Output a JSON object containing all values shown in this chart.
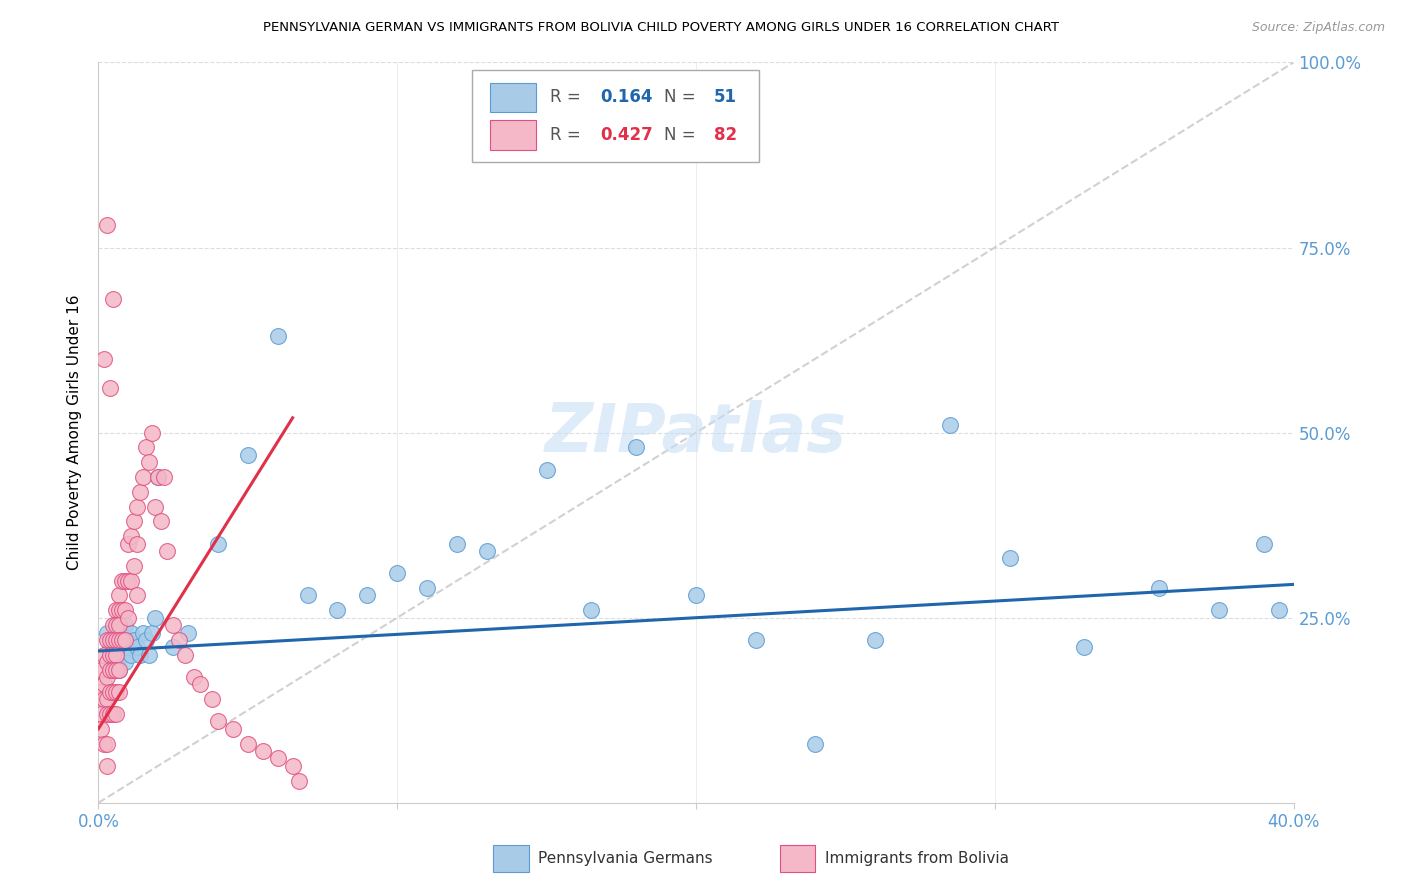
{
  "title": "PENNSYLVANIA GERMAN VS IMMIGRANTS FROM BOLIVIA CHILD POVERTY AMONG GIRLS UNDER 16 CORRELATION CHART",
  "source": "Source: ZipAtlas.com",
  "ylabel": "Child Poverty Among Girls Under 16",
  "xlim": [
    0.0,
    0.4
  ],
  "ylim": [
    0.0,
    1.0
  ],
  "color_blue": "#a8cce8",
  "color_blue_edge": "#5b9bd5",
  "color_pink": "#f4b8c8",
  "color_pink_edge": "#e05080",
  "color_trend_blue": "#2166ac",
  "color_trend_pink": "#e0304a",
  "color_diagonal": "#cccccc",
  "color_grid": "#dddddd",
  "color_right_axis": "#5b9bd5",
  "color_watermark": "#c8dff5",
  "watermark": "ZIPatlas",
  "r_blue": "0.164",
  "n_blue": "51",
  "r_pink": "0.427",
  "n_pink": "82",
  "blue_points_x": [
    0.003,
    0.004,
    0.005,
    0.005,
    0.006,
    0.006,
    0.007,
    0.007,
    0.008,
    0.008,
    0.009,
    0.009,
    0.01,
    0.01,
    0.011,
    0.011,
    0.012,
    0.013,
    0.014,
    0.015,
    0.016,
    0.017,
    0.018,
    0.019,
    0.02,
    0.025,
    0.03,
    0.04,
    0.05,
    0.06,
    0.07,
    0.08,
    0.09,
    0.1,
    0.11,
    0.12,
    0.13,
    0.15,
    0.165,
    0.18,
    0.2,
    0.22,
    0.24,
    0.26,
    0.285,
    0.305,
    0.33,
    0.355,
    0.375,
    0.39,
    0.395
  ],
  "blue_points_y": [
    0.23,
    0.21,
    0.22,
    0.19,
    0.24,
    0.2,
    0.23,
    0.18,
    0.22,
    0.2,
    0.24,
    0.19,
    0.22,
    0.21,
    0.23,
    0.2,
    0.22,
    0.21,
    0.2,
    0.23,
    0.22,
    0.2,
    0.23,
    0.25,
    0.44,
    0.21,
    0.23,
    0.35,
    0.47,
    0.63,
    0.28,
    0.26,
    0.28,
    0.31,
    0.29,
    0.35,
    0.34,
    0.45,
    0.26,
    0.48,
    0.28,
    0.22,
    0.08,
    0.22,
    0.51,
    0.33,
    0.21,
    0.29,
    0.26,
    0.35,
    0.26
  ],
  "pink_points_x": [
    0.001,
    0.001,
    0.001,
    0.001,
    0.002,
    0.002,
    0.002,
    0.002,
    0.003,
    0.003,
    0.003,
    0.003,
    0.003,
    0.003,
    0.003,
    0.004,
    0.004,
    0.004,
    0.004,
    0.004,
    0.005,
    0.005,
    0.005,
    0.005,
    0.005,
    0.005,
    0.006,
    0.006,
    0.006,
    0.006,
    0.006,
    0.006,
    0.006,
    0.007,
    0.007,
    0.007,
    0.007,
    0.007,
    0.007,
    0.008,
    0.008,
    0.008,
    0.009,
    0.009,
    0.009,
    0.01,
    0.01,
    0.01,
    0.011,
    0.011,
    0.012,
    0.012,
    0.013,
    0.013,
    0.013,
    0.014,
    0.015,
    0.016,
    0.017,
    0.018,
    0.019,
    0.02,
    0.021,
    0.022,
    0.023,
    0.025,
    0.027,
    0.029,
    0.032,
    0.034,
    0.038,
    0.04,
    0.045,
    0.05,
    0.055,
    0.06,
    0.065,
    0.067,
    0.002,
    0.003,
    0.004,
    0.005
  ],
  "pink_points_y": [
    0.18,
    0.15,
    0.12,
    0.1,
    0.2,
    0.16,
    0.14,
    0.08,
    0.22,
    0.19,
    0.17,
    0.14,
    0.12,
    0.08,
    0.05,
    0.22,
    0.2,
    0.18,
    0.15,
    0.12,
    0.24,
    0.22,
    0.2,
    0.18,
    0.15,
    0.12,
    0.26,
    0.24,
    0.22,
    0.2,
    0.18,
    0.15,
    0.12,
    0.28,
    0.26,
    0.24,
    0.22,
    0.18,
    0.15,
    0.3,
    0.26,
    0.22,
    0.3,
    0.26,
    0.22,
    0.35,
    0.3,
    0.25,
    0.36,
    0.3,
    0.38,
    0.32,
    0.4,
    0.35,
    0.28,
    0.42,
    0.44,
    0.48,
    0.46,
    0.5,
    0.4,
    0.44,
    0.38,
    0.44,
    0.34,
    0.24,
    0.22,
    0.2,
    0.17,
    0.16,
    0.14,
    0.11,
    0.1,
    0.08,
    0.07,
    0.06,
    0.05,
    0.03,
    0.6,
    0.78,
    0.56,
    0.68
  ]
}
